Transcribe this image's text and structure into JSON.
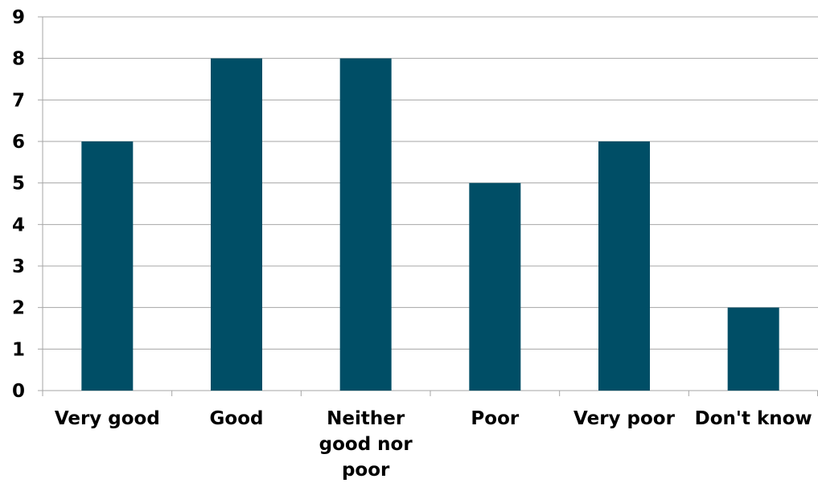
{
  "chart_data": {
    "type": "bar",
    "title": "",
    "xlabel": "",
    "ylabel": "",
    "categories": [
      [
        "Very good"
      ],
      [
        "Good"
      ],
      [
        "Neither",
        "good nor",
        "poor"
      ],
      [
        "Poor"
      ],
      [
        "Very poor"
      ],
      [
        "Don't know"
      ]
    ],
    "values": [
      6,
      8,
      8,
      5,
      6,
      2
    ],
    "ylim": [
      0,
      9
    ],
    "yticks": [
      "0",
      "1",
      "2",
      "3",
      "4",
      "5",
      "6",
      "7",
      "8",
      "9"
    ],
    "grid": true,
    "legend": "none",
    "colors": {
      "bar": "#004E66",
      "grid": "#A6A6A6",
      "axis": "#A6A6A6"
    }
  }
}
